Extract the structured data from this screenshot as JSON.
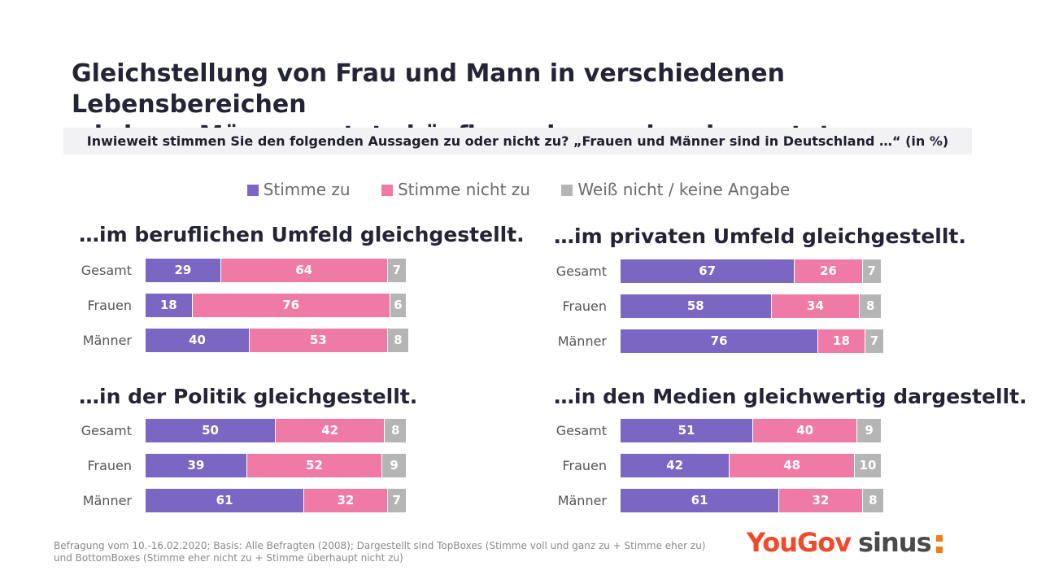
{
  "title_line1": "Gleichstellung von Frau und Mann in verschiedenen Lebensbereichen",
  "title_line2": "wird von Männern stets häufiger als gegeben bewertet.",
  "subtitle": "Inwieweit stimmen Sie den folgenden Aussagen zu oder nicht zu?  „Frauen und Männer sind in Deutschland …“ (in %)",
  "legend": [
    {
      "label": "Stimme zu",
      "color": "#7b66c4"
    },
    {
      "label": "Stimme nicht zu",
      "color": "#f07aa6"
    },
    {
      "label": "Weiß nicht / keine Angabe",
      "color": "#b5b5b5"
    }
  ],
  "chart_data": [
    {
      "type": "bar",
      "stacked": true,
      "orientation": "horizontal",
      "title": "…im beruflichen Umfeld gleichgestellt.",
      "categories": [
        "Gesamt",
        "Frauen",
        "Männer"
      ],
      "series": [
        {
          "name": "Stimme zu",
          "values": [
            29,
            18,
            40
          ]
        },
        {
          "name": "Stimme nicht zu",
          "values": [
            64,
            76,
            53
          ]
        },
        {
          "name": "Weiß nicht / keine Angabe",
          "values": [
            7,
            6,
            8
          ]
        }
      ]
    },
    {
      "type": "bar",
      "stacked": true,
      "orientation": "horizontal",
      "title": "…im privaten Umfeld gleichgestellt.",
      "categories": [
        "Gesamt",
        "Frauen",
        "Männer"
      ],
      "series": [
        {
          "name": "Stimme zu",
          "values": [
            67,
            58,
            76
          ]
        },
        {
          "name": "Stimme nicht zu",
          "values": [
            26,
            34,
            18
          ]
        },
        {
          "name": "Weiß nicht / keine Angabe",
          "values": [
            7,
            8,
            7
          ]
        }
      ]
    },
    {
      "type": "bar",
      "stacked": true,
      "orientation": "horizontal",
      "title": "…in der Politik gleichgestellt.",
      "categories": [
        "Gesamt",
        "Frauen",
        "Männer"
      ],
      "series": [
        {
          "name": "Stimme zu",
          "values": [
            50,
            39,
            61
          ]
        },
        {
          "name": "Stimme nicht zu",
          "values": [
            42,
            52,
            32
          ]
        },
        {
          "name": "Weiß nicht / keine Angabe",
          "values": [
            8,
            9,
            7
          ]
        }
      ]
    },
    {
      "type": "bar",
      "stacked": true,
      "orientation": "horizontal",
      "title": "…in den Medien gleichwertig dargestellt.",
      "categories": [
        "Gesamt",
        "Frauen",
        "Männer"
      ],
      "series": [
        {
          "name": "Stimme zu",
          "values": [
            51,
            42,
            61
          ]
        },
        {
          "name": "Stimme nicht zu",
          "values": [
            40,
            48,
            32
          ]
        },
        {
          "name": "Weiß nicht / keine Angabe",
          "values": [
            9,
            10,
            8
          ]
        }
      ]
    }
  ],
  "footnote_line1": "Befragung vom 10.-16.02.2020;  Basis: Alle Befragten (2008); Dargestellt sind TopBoxes (Stimme voll und ganz zu + Stimme eher zu)",
  "footnote_line2": "und BottomBoxes (Stimme eher nicht zu + Stimme überhaupt nicht zu)",
  "logos": {
    "yougov": "YouGov",
    "sinus": "sinus"
  }
}
